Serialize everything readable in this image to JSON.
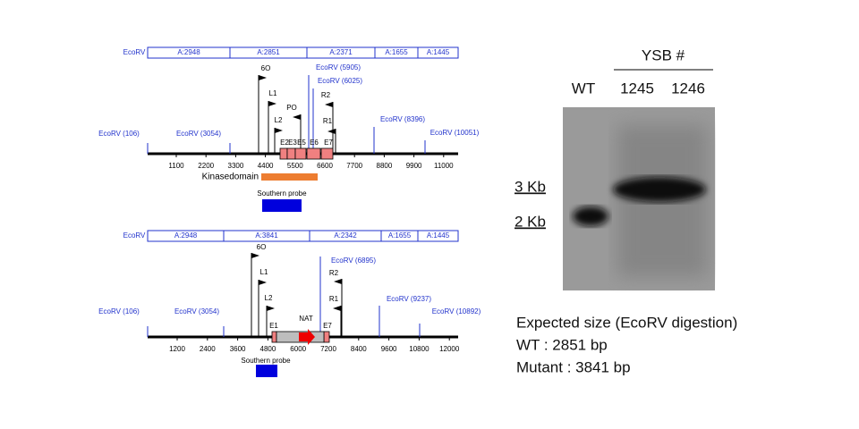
{
  "top_map": {
    "fragment_label": "EcoRV",
    "fragments": [
      "A:2948",
      "A:2851",
      "A:2371",
      "A:1655",
      "A:1445"
    ],
    "sites": [
      "EcoRV (106)",
      "EcoRV (3054)",
      "EcoRV (5905)",
      "EcoRV (6025)",
      "EcoRV (8396)",
      "EcoRV (10051)"
    ],
    "primers": [
      "6O",
      "L1",
      "L2",
      "PO",
      "R2",
      "R1"
    ],
    "exons": [
      "E2",
      "E3",
      "E5",
      "E6",
      "E7"
    ],
    "ticks": [
      "1100",
      "2200",
      "3300",
      "4400",
      "5500",
      "6600",
      "7700",
      "8800",
      "9900",
      "11000"
    ],
    "domain_label": "Kinasedomain",
    "probe_label": "Southern probe"
  },
  "bottom_map": {
    "fragment_label": "EcoRV",
    "fragments": [
      "A:2948",
      "A:3841",
      "A:2342",
      "A:1655",
      "A:1445"
    ],
    "sites": [
      "EcoRV (106)",
      "EcoRV (3054)",
      "EcoRV (6895)",
      "EcoRV (9237)",
      "EcoRV (10892)"
    ],
    "primers": [
      "6O",
      "L1",
      "L2",
      "R2",
      "R1"
    ],
    "exons": [
      "E1",
      "E7"
    ],
    "marker": "NAT",
    "ticks": [
      "1200",
      "2400",
      "3600",
      "4800",
      "6000",
      "7200",
      "8400",
      "9600",
      "10800",
      "12000"
    ],
    "probe_label": "Southern probe"
  },
  "blot": {
    "header": "YSB #",
    "lanes": [
      "WT",
      "1245",
      "1246"
    ],
    "markers": [
      "3 Kb",
      "2 Kb"
    ]
  },
  "notes": [
    "Expected size (EcoRV digestion)",
    "WT : 2851 bp",
    "Mutant : 3841 bp"
  ]
}
